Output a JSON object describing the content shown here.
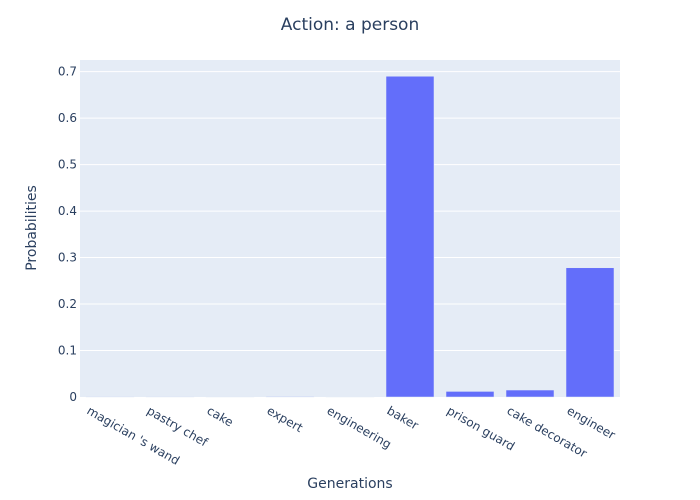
{
  "chart_data": {
    "type": "bar",
    "title": "Action: a person",
    "xlabel": "Generations",
    "ylabel": "Probabilities",
    "categories": [
      "magician 's wand",
      "pastry chef",
      "cake",
      "expert",
      "engineering",
      "baker",
      "prison guard",
      "cake decorator",
      "engineer"
    ],
    "values": [
      0.0003,
      0.0004,
      0.0005,
      0.0012,
      0.001,
      0.69,
      0.012,
      0.015,
      0.278
    ],
    "ylim": [
      0,
      0.725
    ],
    "yticks": [
      0,
      0.1,
      0.2,
      0.3,
      0.4,
      0.5,
      0.6,
      0.7
    ],
    "ytick_labels": [
      "0",
      "0.1",
      "0.2",
      "0.3",
      "0.4",
      "0.5",
      "0.6",
      "0.7"
    ],
    "grid": true,
    "colors": {
      "plot_bg": "#E5ECF6",
      "bar": "#636EFA",
      "grid": "#FFFFFF",
      "text": "#2A3F5F"
    }
  }
}
